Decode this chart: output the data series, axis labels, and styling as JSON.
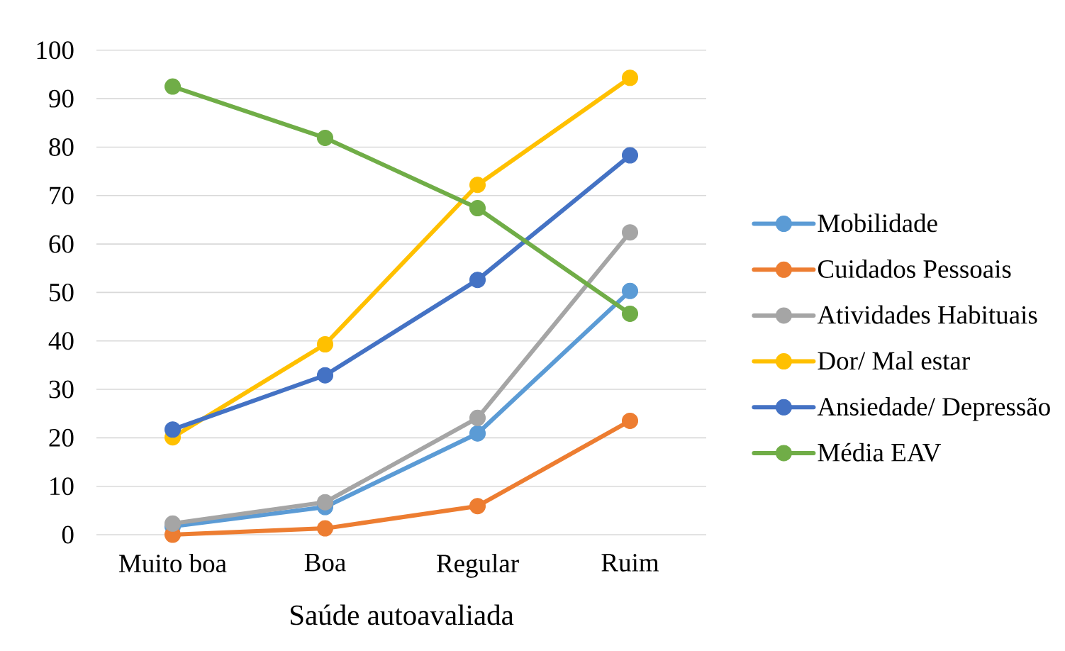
{
  "chart_data": {
    "type": "line",
    "xlabel": "Saúde autoavaliada",
    "categories": [
      "Muito boa",
      "Boa",
      "Regular",
      "Ruim"
    ],
    "series": [
      {
        "name": "Mobilidade",
        "color": "#5b9bd5",
        "values": [
          1.7,
          5.7,
          20.9,
          50.3
        ]
      },
      {
        "name": "Cuidados Pessoais",
        "color": "#ed7d31",
        "values": [
          0,
          1.3,
          5.9,
          23.5
        ]
      },
      {
        "name": "Atividades Habituais",
        "color": "#a5a5a5",
        "values": [
          2.3,
          6.7,
          24.1,
          62.4
        ]
      },
      {
        "name": "Dor/ Mal estar",
        "color": "#ffc000",
        "values": [
          20.1,
          39.3,
          72.2,
          94.3
        ]
      },
      {
        "name": "Ansiedade/ Depressão",
        "color": "#4472c4",
        "values": [
          21.7,
          32.9,
          52.6,
          78.3
        ]
      },
      {
        "name": "Média EAV",
        "color": "#70ad47",
        "values": [
          92.5,
          81.9,
          67.4,
          45.6
        ]
      }
    ],
    "ylim": [
      0,
      100
    ],
    "yticks": [
      0,
      10,
      20,
      30,
      40,
      50,
      60,
      70,
      80,
      90,
      100
    ],
    "grid": "y",
    "legend": "right",
    "marker": "circle",
    "line_style": "solid"
  }
}
